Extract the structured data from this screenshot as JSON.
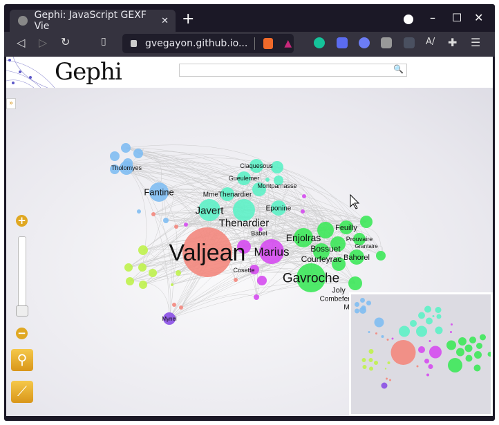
{
  "browser": {
    "tab_title": "Gephi: JavaScript GEXF Vie",
    "url": "gvegayon.github.io...",
    "icons": [
      "back-icon",
      "forward-icon",
      "reload-icon",
      "bookmark-icon",
      "lock-icon",
      "brave-shield-icon",
      "brave-rewards-icon",
      "grammarly-icon",
      "zoom-ext-icon",
      "ext-icon",
      "copy-ext-icon",
      "ext-dots-icon",
      "spellcheck-icon",
      "extensions-icon",
      "menu-icon"
    ]
  },
  "header": {
    "logo": "Gephi",
    "search_placeholder": ""
  },
  "graph": {
    "labels": [
      "Valjean",
      "Marius",
      "Gavroche",
      "Javert",
      "Thenardier",
      "Fantine",
      "Enjolras",
      "Bossuet",
      "Courfeyrac",
      "Combeferre",
      "Feuilly",
      "Prouvaire",
      "Grantaire",
      "Bahorel",
      "Joly",
      "Mabeuf",
      "Cosette",
      "Eponine",
      "MmeThenardier",
      "Babet",
      "Gueulemer",
      "Claquesous",
      "Montparnasse",
      "Tholomyes",
      "Mynel"
    ],
    "colors": {
      "valjean": "#f3877d",
      "blue": "#7fbdf2",
      "teal": "#5df1c6",
      "green": "#3de85a",
      "magenta": "#d54bf0",
      "lime": "#bff24d",
      "violet": "#8a4fe6",
      "accent": "#e0a823"
    }
  },
  "controls": {
    "zoom_in": "+",
    "zoom_out": "−",
    "expand": "»"
  }
}
